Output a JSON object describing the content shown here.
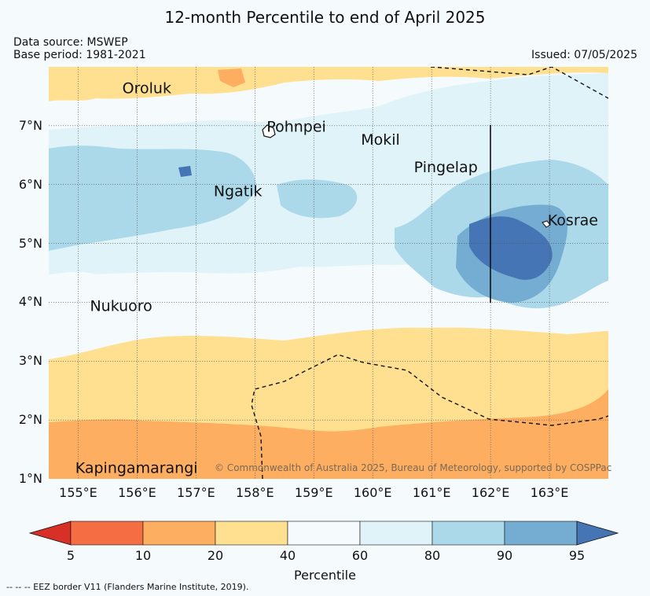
{
  "title": "12-month Percentile to end of April 2025",
  "data_source": "Data source: MSWEP",
  "base_period": "Base period: 1981-2021",
  "issued": "Issued: 07/05/2025",
  "copyright": "© Commonwealth of Australia 2025, Bureau of Meteorology, supported by COSPPac",
  "footnote": "-- -- -- EEZ border V11 (Flanders Marine Institute, 2019).",
  "map": {
    "lon_range": [
      154.5,
      164.0
    ],
    "lat_range": [
      1.0,
      8.0
    ],
    "lat_ticks": [
      "7°N",
      "6°N",
      "5°N",
      "4°N",
      "3°N",
      "2°N",
      "1°N"
    ],
    "lon_ticks": [
      "155°E",
      "156°E",
      "157°E",
      "158°E",
      "159°E",
      "160°E",
      "161°E",
      "162°E",
      "163°E"
    ],
    "grid": true,
    "places": [
      {
        "name": "Oroluk",
        "lon": 155.75,
        "lat": 7.55
      },
      {
        "name": "Pohnpei",
        "lon": 158.2,
        "lat": 6.9
      },
      {
        "name": "Mokil",
        "lon": 159.8,
        "lat": 6.68
      },
      {
        "name": "Pingelap",
        "lon": 160.7,
        "lat": 6.21
      },
      {
        "name": "Ngatik",
        "lon": 157.3,
        "lat": 5.8
      },
      {
        "name": "Kosrae",
        "lon": 162.97,
        "lat": 5.31
      },
      {
        "name": "Nukuoro",
        "lon": 155.2,
        "lat": 3.85
      },
      {
        "name": "Kapingamarangi",
        "lon": 154.95,
        "lat": 1.1
      }
    ]
  },
  "colorbar": {
    "label": "Percentile",
    "ticks": [
      "5",
      "10",
      "20",
      "40",
      "60",
      "80",
      "90",
      "95"
    ],
    "colors": [
      "#d73027",
      "#f46d43",
      "#fdae61",
      "#fee090",
      "#f5fafd",
      "#e0f3f8",
      "#abd9e9",
      "#74add1",
      "#4575b4"
    ]
  }
}
